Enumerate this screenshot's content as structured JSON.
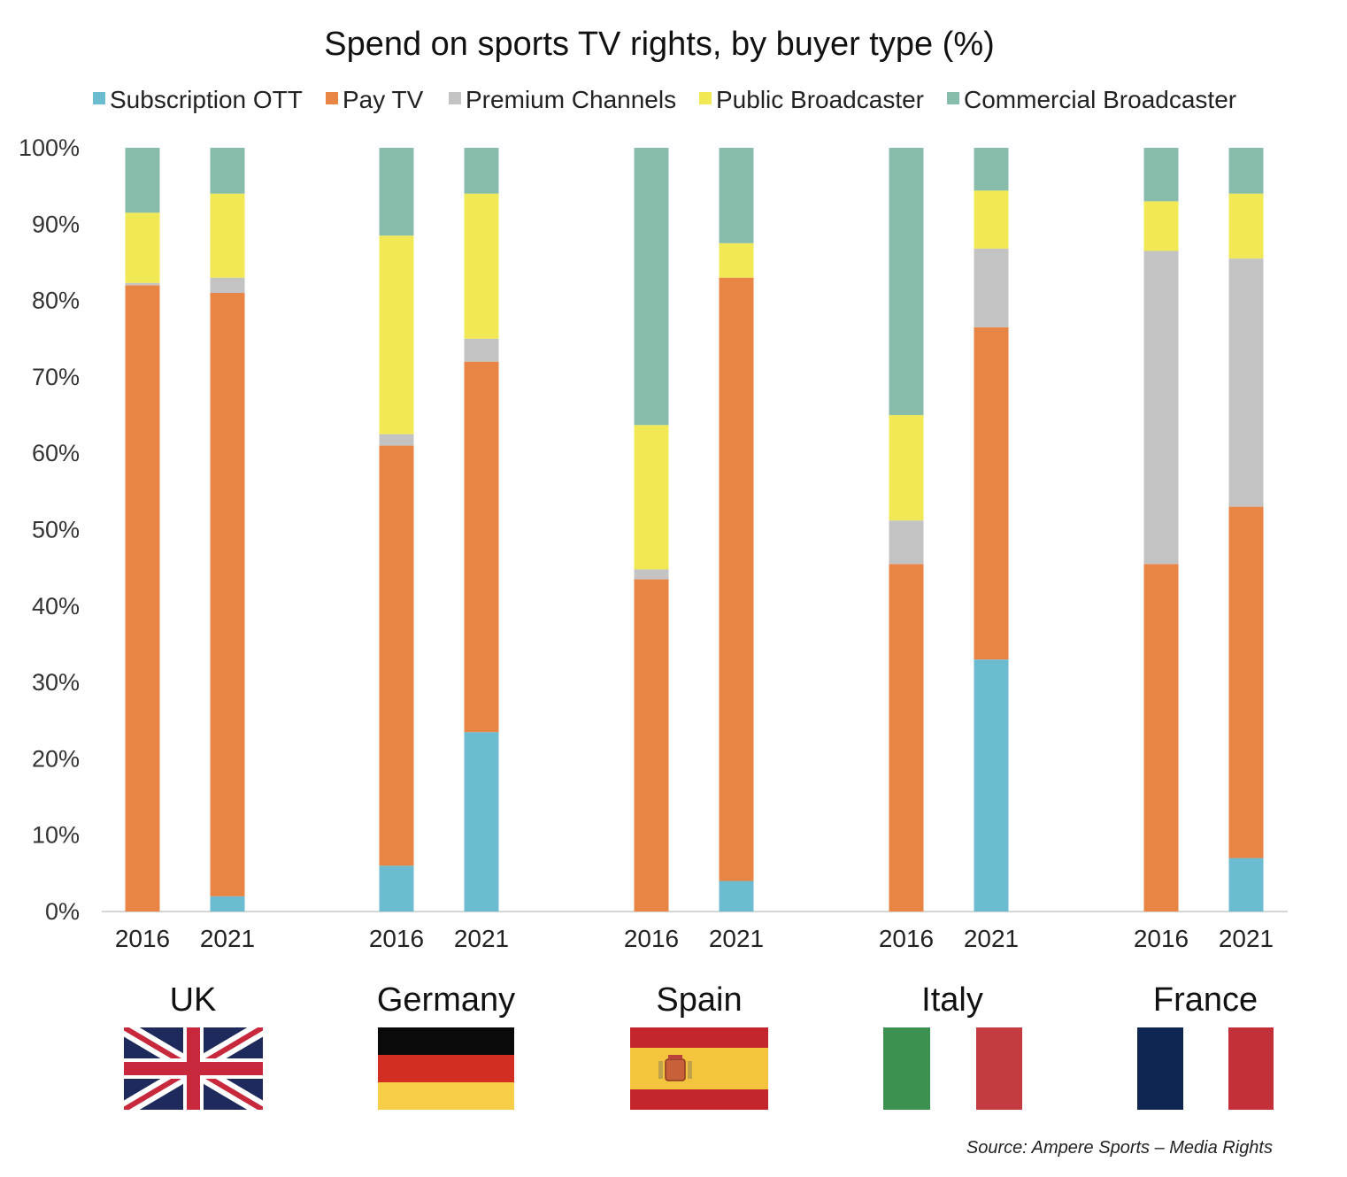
{
  "chart_data": {
    "type": "bar",
    "stacked": true,
    "title": "Spend on sports TV rights, by buyer type (%)",
    "source": "Source: Ampere Sports – Media Rights",
    "ylim": [
      0,
      100
    ],
    "yticks": [
      "0%",
      "10%",
      "20%",
      "30%",
      "40%",
      "50%",
      "60%",
      "70%",
      "80%",
      "90%",
      "100%"
    ],
    "legend_position": "top",
    "grid": false,
    "groups": [
      "UK",
      "Germany",
      "Spain",
      "Italy",
      "France"
    ],
    "group_flags": [
      "uk-flag-icon",
      "germany-flag-icon",
      "spain-flag-icon",
      "italy-flag-icon",
      "france-flag-icon"
    ],
    "categories": [
      "2016",
      "2021",
      "2016",
      "2021",
      "2016",
      "2021",
      "2016",
      "2021",
      "2016",
      "2021"
    ],
    "category_group": [
      0,
      0,
      1,
      1,
      2,
      2,
      3,
      3,
      4,
      4
    ],
    "series": [
      {
        "name": "Subscription OTT",
        "color": "#6bbcd0",
        "values": [
          0,
          2,
          6,
          23.5,
          0,
          4,
          0,
          33,
          0,
          7
        ]
      },
      {
        "name": "Pay TV",
        "color": "#e88444",
        "values": [
          82,
          79,
          55,
          48.5,
          43.5,
          79,
          45.5,
          43.5,
          45.5,
          46
        ]
      },
      {
        "name": "Premium Channels",
        "color": "#c3c3c3",
        "values": [
          0.3,
          2,
          1.5,
          3,
          1.3,
          0,
          5.7,
          10.3,
          41,
          32.5
        ]
      },
      {
        "name": "Public Broadcaster",
        "color": "#f1e855",
        "values": [
          9.2,
          11,
          26,
          19,
          18.9,
          4.5,
          13.8,
          7.6,
          6.5,
          8.5
        ]
      },
      {
        "name": "Commercial Broadcaster",
        "color": "#87bcab",
        "values": [
          8.5,
          6,
          11.5,
          6,
          36.3,
          12.5,
          35,
          5.6,
          7,
          6
        ]
      }
    ]
  }
}
